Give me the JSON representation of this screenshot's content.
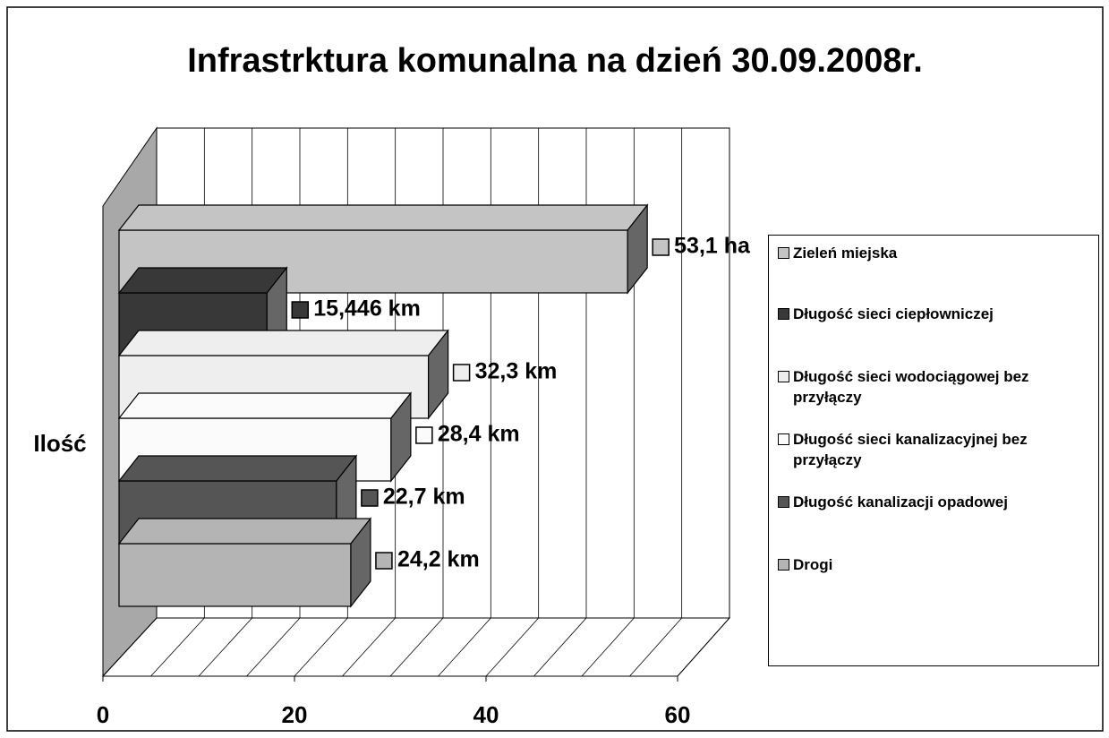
{
  "chart_data": {
    "type": "bar3d_horizontal",
    "title": "Infrastrktura komunalna na dzień 30.09.2008r.",
    "categories": [
      "Ilość"
    ],
    "series": [
      {
        "name": "Zieleń miejska",
        "color": "#c4c4c4",
        "values": [
          53.1
        ],
        "value_labels": [
          "53,1 ha"
        ]
      },
      {
        "name": "Długość sieci ciepłowniczej",
        "color": "#383838",
        "values": [
          15.446
        ],
        "value_labels": [
          "15,446 km"
        ]
      },
      {
        "name": "Długość sieci wodociągowej bez przyłączy",
        "color": "#eeeeee",
        "values": [
          32.3
        ],
        "value_labels": [
          "32,3 km"
        ]
      },
      {
        "name": "Długość sieci kanalizacyjnej bez przyłączy",
        "color": "#fbfbfb",
        "values": [
          28.4
        ],
        "value_labels": [
          "28,4 km"
        ]
      },
      {
        "name": "Długość kanalizacji opadowej",
        "color": "#555555",
        "values": [
          22.7
        ],
        "value_labels": [
          "22,7 km"
        ]
      },
      {
        "name": "Drogi",
        "color": "#b4b4b4",
        "values": [
          24.2
        ],
        "value_labels": [
          "24,2 km"
        ]
      }
    ],
    "xlim": [
      0,
      60
    ],
    "xticks": [
      0,
      20,
      40,
      60
    ],
    "xgrid": [
      0,
      5,
      10,
      15,
      20,
      25,
      30,
      35,
      40,
      45,
      50,
      55,
      60
    ],
    "grid": true,
    "legend": "right"
  }
}
